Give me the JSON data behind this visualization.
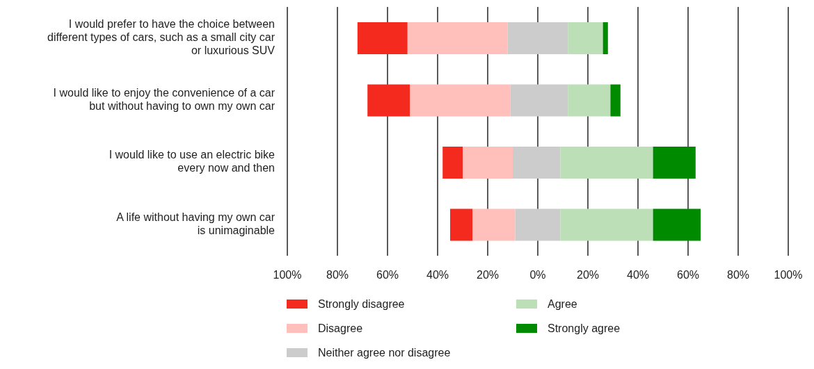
{
  "chart_data": {
    "type": "bar",
    "orientation": "horizontal",
    "categories": [
      "I would prefer to have the choice between\ndifferent types of cars, such as a small city car\nor luxurious SUV",
      "I would like to enjoy the convenience of a car\nbut without having to own my own car",
      "I would like to use an electric bike\nevery now and then",
      "A life without having my own car\nis unimaginable"
    ],
    "series": [
      {
        "name": "Strongly disagree",
        "color": "#f52a1e",
        "base": [
          -72,
          -68,
          -38,
          -35
        ],
        "values": [
          20,
          17,
          8,
          9
        ]
      },
      {
        "name": "Disagree",
        "color": "#ffc0bb",
        "base": [
          -52,
          -51,
          -30,
          -26
        ],
        "values": [
          40,
          40,
          20,
          17
        ]
      },
      {
        "name": "Neither agree nor disagree",
        "color": "#cccccc",
        "base": [
          -12,
          -11,
          -10,
          -9
        ],
        "values": [
          24,
          23,
          19,
          18
        ]
      },
      {
        "name": "Agree",
        "color": "#bcdfb8",
        "base": [
          12,
          12,
          9,
          9
        ],
        "values": [
          14,
          17,
          37,
          37
        ]
      },
      {
        "name": "Strongly agree",
        "color": "#008a00",
        "base": [
          26,
          29,
          46,
          46
        ],
        "values": [
          2,
          4,
          17,
          19
        ]
      }
    ],
    "xlim": [
      -100,
      100
    ],
    "xticks": [
      {
        "value": -100,
        "label": "100%"
      },
      {
        "value": -80,
        "label": "80%"
      },
      {
        "value": -60,
        "label": "60%"
      },
      {
        "value": -40,
        "label": "40%"
      },
      {
        "value": -20,
        "label": "20%"
      },
      {
        "value": 0,
        "label": "0%"
      },
      {
        "value": 20,
        "label": "20%"
      },
      {
        "value": 40,
        "label": "40%"
      },
      {
        "value": 60,
        "label": "60%"
      },
      {
        "value": 80,
        "label": "80%"
      },
      {
        "value": 100,
        "label": "100%"
      }
    ],
    "grid": "x",
    "legend": "bottom"
  }
}
